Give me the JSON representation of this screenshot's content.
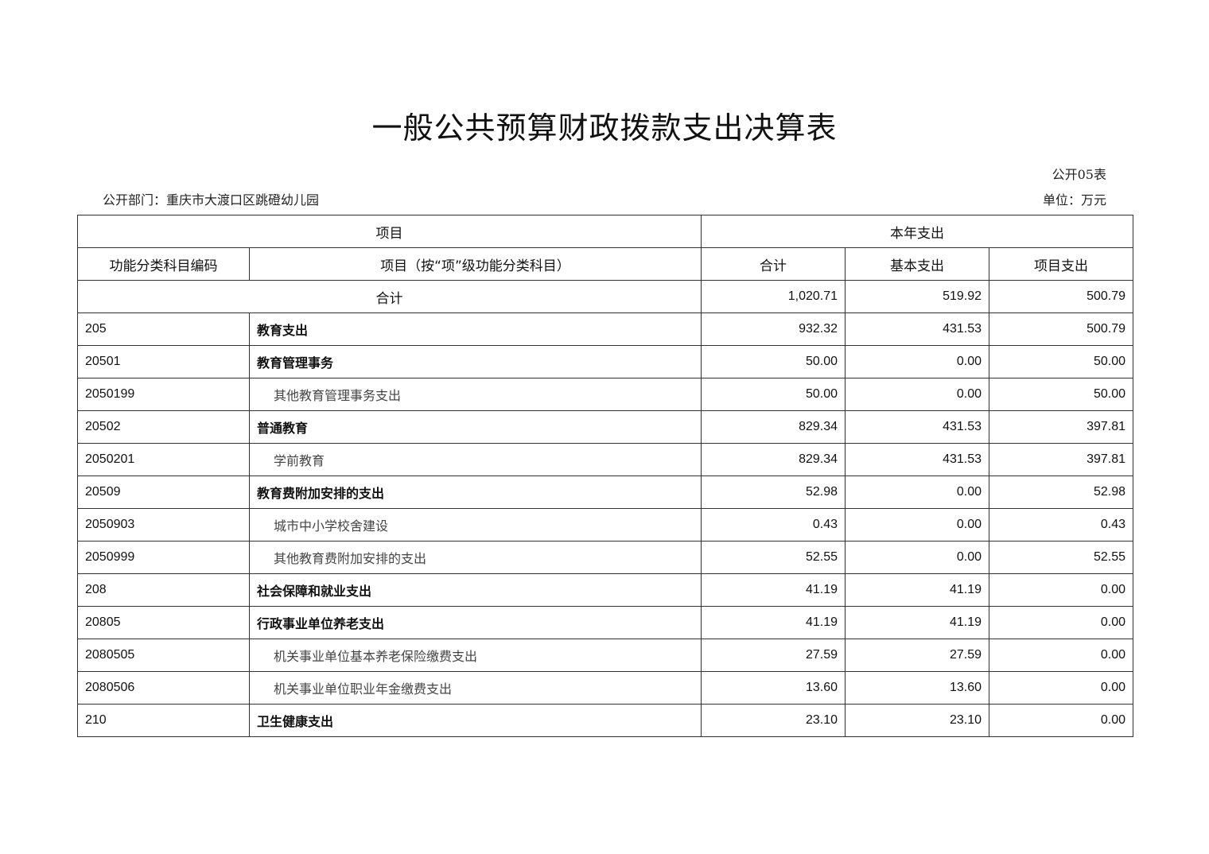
{
  "title": "一般公共预算财政拨款支出决算表",
  "form_no": "公开05表",
  "department": "公开部门：重庆市大渡口区跳磴幼儿园",
  "unit": "单位：万元",
  "headers": {
    "item_group": "项目",
    "current_year_group": "本年支出",
    "code": "功能分类科目编码",
    "item": "项目（按“项”级功能分类科目）",
    "total": "合计",
    "basic": "基本支出",
    "project": "项目支出"
  },
  "total_row": {
    "label": "合计",
    "total": "1,020.71",
    "basic": "519.92",
    "project": "500.79"
  },
  "rows": [
    {
      "code": "205",
      "name": "教育支出",
      "level": "bold",
      "total": "932.32",
      "basic": "431.53",
      "project": "500.79"
    },
    {
      "code": "20501",
      "name": "教育管理事务",
      "level": "bold",
      "total": "50.00",
      "basic": "0.00",
      "project": "50.00"
    },
    {
      "code": "2050199",
      "name": "其他教育管理事务支出",
      "level": "sub",
      "total": "50.00",
      "basic": "0.00",
      "project": "50.00"
    },
    {
      "code": "20502",
      "name": "普通教育",
      "level": "bold",
      "total": "829.34",
      "basic": "431.53",
      "project": "397.81"
    },
    {
      "code": "2050201",
      "name": "学前教育",
      "level": "sub",
      "total": "829.34",
      "basic": "431.53",
      "project": "397.81"
    },
    {
      "code": "20509",
      "name": "教育费附加安排的支出",
      "level": "bold",
      "total": "52.98",
      "basic": "0.00",
      "project": "52.98"
    },
    {
      "code": "2050903",
      "name": "城市中小学校舍建设",
      "level": "sub",
      "total": "0.43",
      "basic": "0.00",
      "project": "0.43"
    },
    {
      "code": "2050999",
      "name": "其他教育费附加安排的支出",
      "level": "sub",
      "total": "52.55",
      "basic": "0.00",
      "project": "52.55"
    },
    {
      "code": "208",
      "name": "社会保障和就业支出",
      "level": "bold",
      "total": "41.19",
      "basic": "41.19",
      "project": "0.00"
    },
    {
      "code": "20805",
      "name": "行政事业单位养老支出",
      "level": "bold",
      "total": "41.19",
      "basic": "41.19",
      "project": "0.00"
    },
    {
      "code": "2080505",
      "name": "机关事业单位基本养老保险缴费支出",
      "level": "sub",
      "total": "27.59",
      "basic": "27.59",
      "project": "0.00"
    },
    {
      "code": "2080506",
      "name": "机关事业单位职业年金缴费支出",
      "level": "sub",
      "total": "13.60",
      "basic": "13.60",
      "project": "0.00"
    },
    {
      "code": "210",
      "name": "卫生健康支出",
      "level": "bold",
      "total": "23.10",
      "basic": "23.10",
      "project": "0.00"
    }
  ]
}
